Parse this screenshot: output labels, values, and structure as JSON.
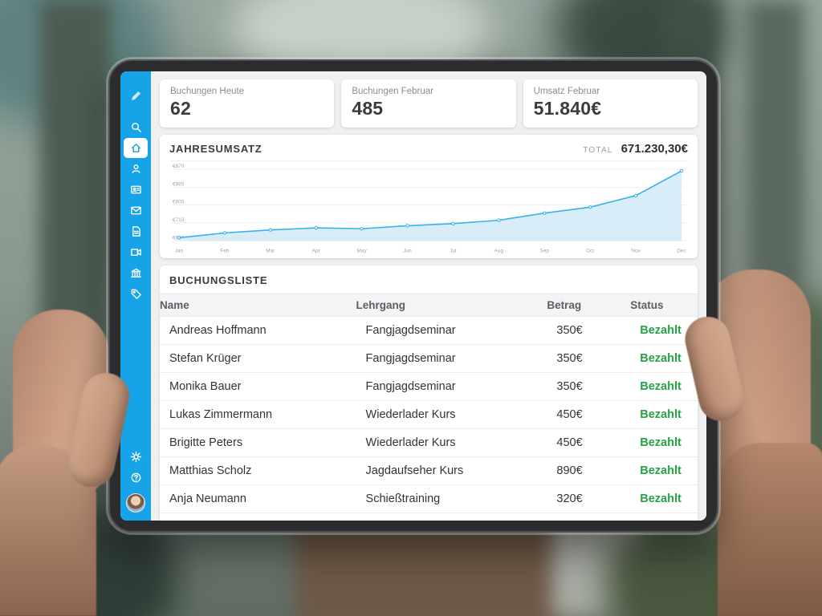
{
  "colors": {
    "accent_blue": "#17a3e8",
    "chart_line": "#38b1ea",
    "chart_fill": "#d9edf9",
    "status_green": "#27a244"
  },
  "sidebar": {
    "icons": [
      "pen-icon",
      "search-icon",
      "home-icon",
      "user-icon",
      "contacts-icon",
      "mail-icon",
      "document-icon",
      "video-icon",
      "bank-icon",
      "tag-icon"
    ],
    "bottom_icons": [
      "gear-icon",
      "help-icon",
      "avatar"
    ]
  },
  "stats": [
    {
      "label": "Buchungen Heute",
      "value": "62"
    },
    {
      "label": "Buchungen Februar",
      "value": "485"
    },
    {
      "label": "Umsatz Februar",
      "value": "51.840€"
    }
  ],
  "revenue": {
    "title": "JAHRESUMSATZ",
    "total_label": "TOTAL",
    "total_value": "671.230,30€"
  },
  "chart_data": {
    "type": "area",
    "title": "Jahresumsatz",
    "x": [
      "Jan",
      "Feb",
      "Mar",
      "Apr",
      "May",
      "Jun",
      "Jul",
      "Aug",
      "Sep",
      "Oct",
      "Nov",
      "Dec"
    ],
    "values": [
      645,
      668,
      682,
      692,
      688,
      702,
      712,
      728,
      762,
      790,
      845,
      962
    ],
    "ylim": [
      630,
      970
    ],
    "ylabel_ticks": [
      630,
      715,
      800,
      885,
      970
    ],
    "ytick_labels": [
      "€630",
      "€715",
      "€800",
      "€885",
      "€970"
    ],
    "grid": true,
    "legend": false
  },
  "bookings": {
    "title": "BUCHUNGSLISTE",
    "columns": [
      "Name",
      "Lehrgang",
      "Betrag",
      "Status"
    ],
    "rows": [
      {
        "name": "Andreas Hoffmann",
        "course": "Fangjagdseminar",
        "amount": "350€",
        "status": "Bezahlt"
      },
      {
        "name": "Stefan Krüger",
        "course": "Fangjagdseminar",
        "amount": "350€",
        "status": "Bezahlt"
      },
      {
        "name": "Monika Bauer",
        "course": "Fangjagdseminar",
        "amount": "350€",
        "status": "Bezahlt"
      },
      {
        "name": "Lukas Zimmermann",
        "course": "Wiederlader Kurs",
        "amount": "450€",
        "status": "Bezahlt"
      },
      {
        "name": "Brigitte Peters",
        "course": "Wiederlader Kurs",
        "amount": "450€",
        "status": "Bezahlt"
      },
      {
        "name": "Matthias Scholz",
        "course": "Jagdaufseher Kurs",
        "amount": "890€",
        "status": "Bezahlt"
      },
      {
        "name": "Anja Neumann",
        "course": "Schießtraining",
        "amount": "320€",
        "status": "Bezahlt"
      }
    ]
  }
}
